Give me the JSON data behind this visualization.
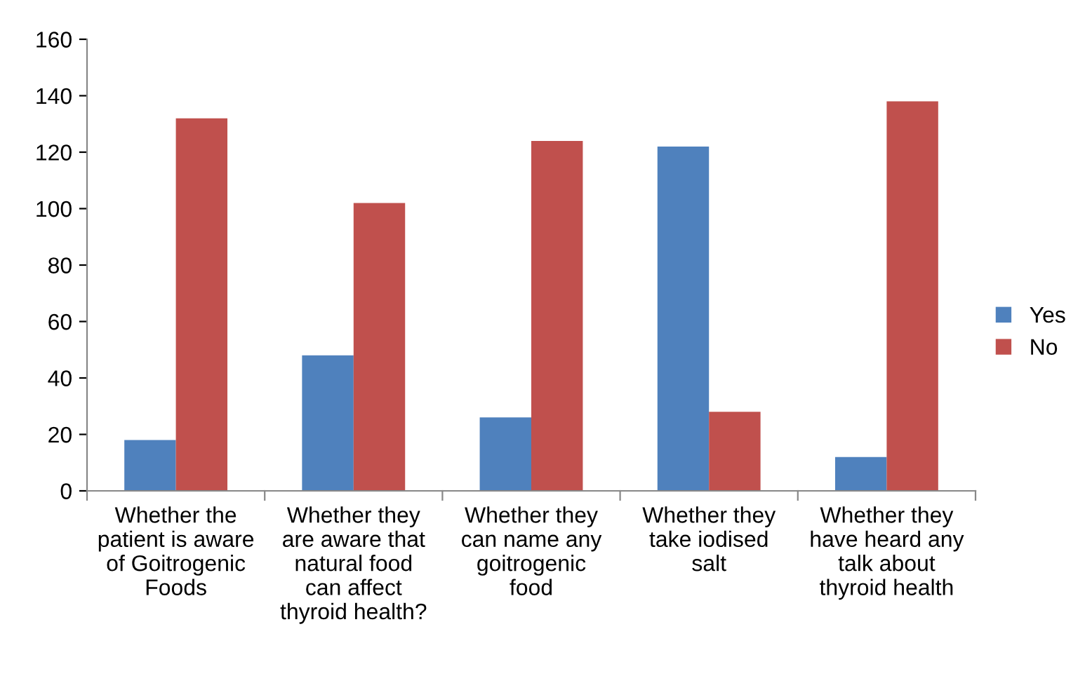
{
  "chart_data": {
    "type": "bar",
    "categories": [
      "Whether the\npatient is aware\nof Goitrogenic\nFoods",
      "Whether they\nare aware that\nnatural food\ncan affect\nthyroid health?",
      "Whether they\ncan name any\ngoitrogenic\nfood",
      "Whether they\ntake iodised\nsalt",
      "Whether they\nhave heard any\ntalk about\nthyroid health"
    ],
    "series": [
      {
        "name": "Yes",
        "color": "#4f81bd",
        "values": [
          18,
          48,
          26,
          122,
          12
        ]
      },
      {
        "name": "No",
        "color": "#c0504d",
        "values": [
          132,
          102,
          124,
          28,
          138
        ]
      }
    ],
    "ylim": [
      0,
      160
    ],
    "yticks": [
      0,
      20,
      40,
      60,
      80,
      100,
      120,
      140,
      160
    ],
    "grid": false,
    "legend": "right"
  }
}
